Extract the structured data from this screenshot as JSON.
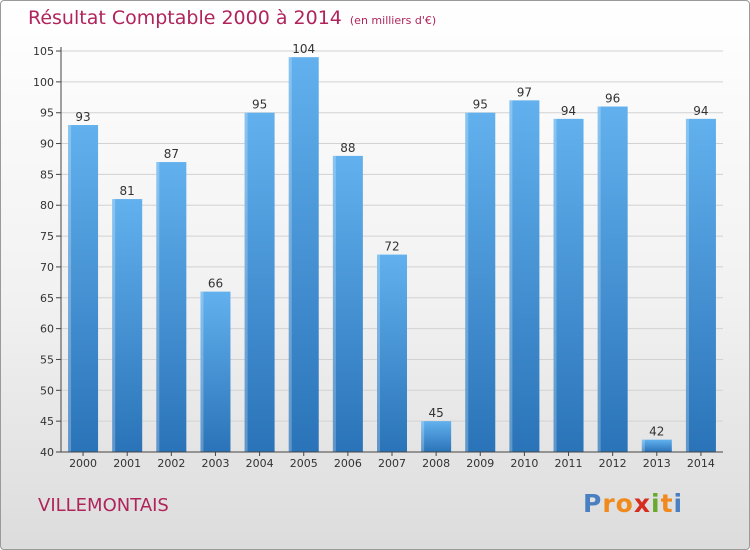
{
  "title": "Résultat Comptable 2000 à 2014",
  "unit": "(en milliers d'€)",
  "commune": "VILLEMONTAIS",
  "logo": {
    "letters": [
      "P",
      "r",
      "o",
      "x",
      "i",
      "t",
      "i"
    ],
    "colors": [
      "#4a7fc1",
      "#f08a1c",
      "#f08a1c",
      "#d62d20",
      "#6aa82e",
      "#f08a1c",
      "#4a7fc1"
    ]
  },
  "colors": {
    "bar": "#3e8fd6",
    "bar_light": "#62b1ee",
    "bar_dark": "#2a73b8",
    "title": "#b0245c",
    "axis": "#444444"
  },
  "chart_data": {
    "type": "bar",
    "title": "Résultat Comptable 2000 à 2014",
    "xlabel": "",
    "ylabel": "",
    "categories": [
      "2000",
      "2001",
      "2002",
      "2003",
      "2004",
      "2005",
      "2006",
      "2007",
      "2008",
      "2009",
      "2010",
      "2011",
      "2012",
      "2013",
      "2014"
    ],
    "values": [
      93,
      81,
      87,
      66,
      95,
      104,
      88,
      72,
      45,
      95,
      97,
      94,
      96,
      42,
      94
    ],
    "ylim": [
      40,
      105
    ],
    "yticks": [
      40,
      45,
      50,
      55,
      60,
      65,
      70,
      75,
      80,
      85,
      90,
      95,
      100,
      105
    ],
    "grid": true
  }
}
